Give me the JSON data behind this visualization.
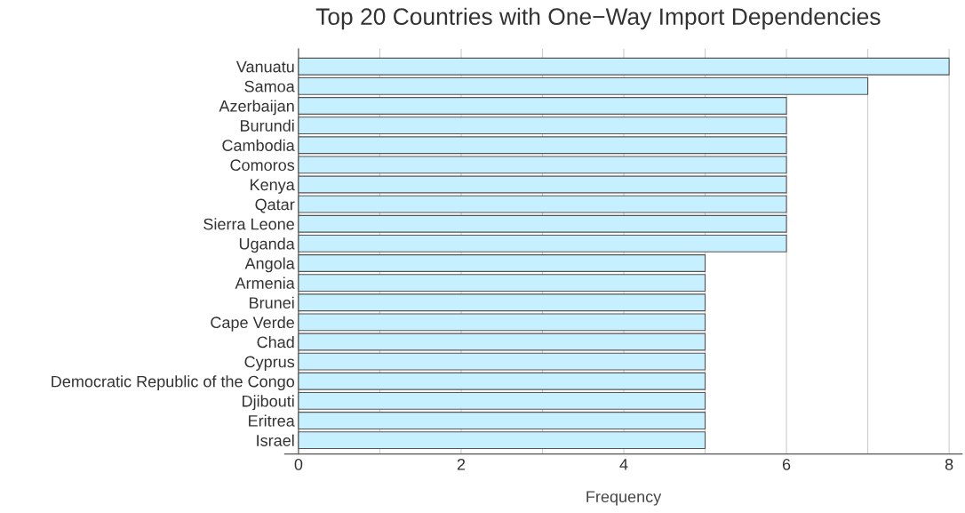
{
  "chart_data": {
    "type": "bar",
    "orientation": "horizontal",
    "title": "Top 20 Countries with One−Way Import Dependencies",
    "xlabel": "Frequency",
    "categories": [
      "Vanuatu",
      "Samoa",
      "Azerbaijan",
      "Burundi",
      "Cambodia",
      "Comoros",
      "Kenya",
      "Qatar",
      "Sierra Leone",
      "Uganda",
      "Angola",
      "Armenia",
      "Brunei",
      "Cape Verde",
      "Chad",
      "Cyprus",
      "Democratic Republic of the Congo",
      "Djibouti",
      "Eritrea",
      "Israel"
    ],
    "values": [
      8,
      7,
      6,
      6,
      6,
      6,
      6,
      6,
      6,
      6,
      5,
      5,
      5,
      5,
      5,
      5,
      5,
      5,
      5,
      5
    ],
    "color": "#c6efff",
    "xlim": [
      -0.17,
      8.16
    ],
    "xticks": [
      0,
      {
        "value": 1,
        "label": null
      },
      2,
      {
        "value": 3,
        "label": null
      },
      4,
      {
        "value": 5,
        "label": null
      },
      6,
      {
        "value": 7,
        "label": null
      },
      8
    ],
    "grid": "x"
  }
}
